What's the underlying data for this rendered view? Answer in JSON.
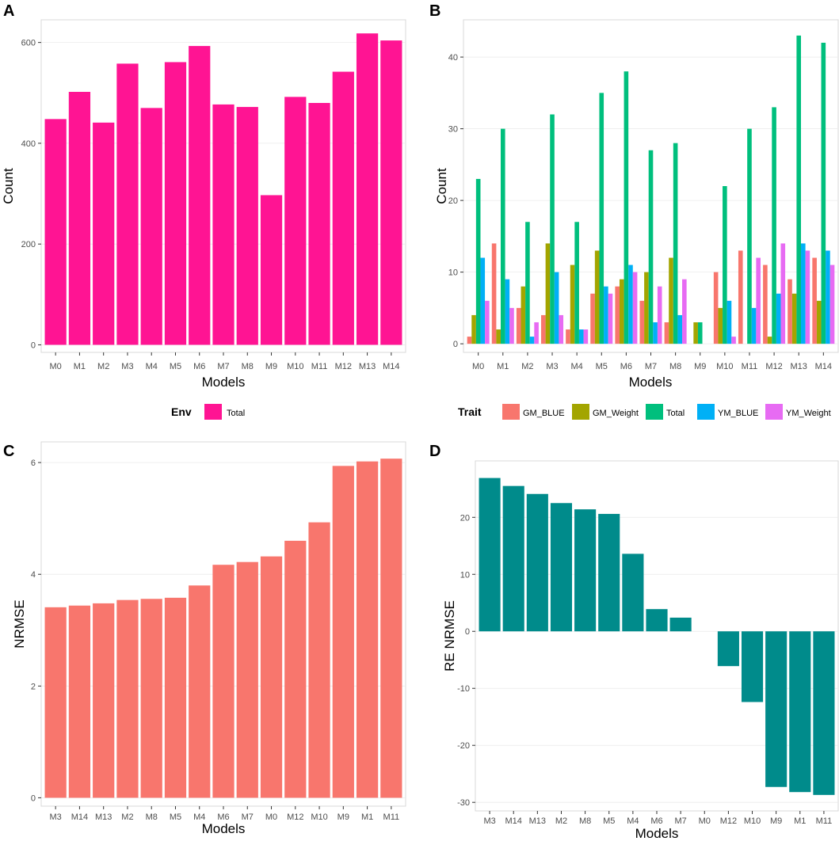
{
  "chart_data": [
    {
      "panel": "A",
      "type": "bar",
      "categories": [
        "M0",
        "M1",
        "M2",
        "M3",
        "M4",
        "M5",
        "M6",
        "M7",
        "M8",
        "M9",
        "M10",
        "M11",
        "M12",
        "M13",
        "M14"
      ],
      "series": [
        {
          "name": "Total",
          "color": "#FF1493",
          "values": [
            448,
            502,
            441,
            558,
            470,
            561,
            593,
            477,
            472,
            297,
            492,
            480,
            542,
            618,
            604
          ]
        }
      ],
      "xlabel": "Models",
      "ylabel": "Count",
      "ylim": [
        -15,
        645
      ],
      "yticks": [
        0,
        200,
        400,
        600
      ],
      "legend": {
        "title": "Env",
        "position": "bottom"
      }
    },
    {
      "panel": "B",
      "type": "bar",
      "categories": [
        "M0",
        "M1",
        "M2",
        "M3",
        "M4",
        "M5",
        "M6",
        "M7",
        "M8",
        "M9",
        "M10",
        "M11",
        "M12",
        "M13",
        "M14"
      ],
      "series": [
        {
          "name": "GM_BLUE",
          "color": "#F8766D",
          "values": [
            1,
            14,
            5,
            4,
            2,
            7,
            8,
            6,
            3,
            0,
            10,
            13,
            11,
            9,
            12
          ]
        },
        {
          "name": "GM_Weight",
          "color": "#A3A500",
          "values": [
            4,
            2,
            8,
            14,
            11,
            13,
            9,
            10,
            12,
            3,
            5,
            0,
            1,
            7,
            6
          ]
        },
        {
          "name": "Total",
          "color": "#00BF7D",
          "values": [
            23,
            30,
            17,
            32,
            17,
            35,
            38,
            27,
            28,
            3,
            22,
            30,
            33,
            43,
            42
          ]
        },
        {
          "name": "YM_BLUE",
          "color": "#00B0F6",
          "values": [
            12,
            9,
            1,
            10,
            2,
            8,
            11,
            3,
            4,
            0,
            6,
            5,
            7,
            14,
            13
          ]
        },
        {
          "name": "YM_Weight",
          "color": "#E76BF3",
          "values": [
            6,
            5,
            3,
            4,
            2,
            7,
            10,
            8,
            9,
            0,
            1,
            12,
            14,
            13,
            11
          ]
        }
      ],
      "xlabel": "Models",
      "ylabel": "Count",
      "ylim": [
        -1.2,
        45.2
      ],
      "yticks": [
        0,
        10,
        20,
        30,
        40
      ],
      "legend": {
        "title": "Trait",
        "position": "bottom"
      }
    },
    {
      "panel": "C",
      "type": "bar",
      "categories": [
        "M3",
        "M14",
        "M13",
        "M2",
        "M8",
        "M5",
        "M4",
        "M6",
        "M7",
        "M0",
        "M12",
        "M10",
        "M9",
        "M1",
        "M11"
      ],
      "series": [
        {
          "name": "NRMSE",
          "color": "#F8766D",
          "values": [
            3.41,
            3.44,
            3.48,
            3.54,
            3.56,
            3.58,
            3.8,
            4.17,
            4.22,
            4.32,
            4.6,
            4.93,
            5.94,
            6.02,
            6.07
          ]
        }
      ],
      "xlabel": "Models",
      "ylabel": "NRMSE",
      "ylim": [
        -0.15,
        6.37
      ],
      "yticks": [
        0,
        2,
        4,
        6
      ]
    },
    {
      "panel": "D",
      "type": "bar",
      "categories": [
        "M3",
        "M14",
        "M13",
        "M2",
        "M8",
        "M5",
        "M4",
        "M6",
        "M7",
        "M0",
        "M12",
        "M10",
        "M9",
        "M1",
        "M11"
      ],
      "series": [
        {
          "name": "RE NRMSE",
          "color": "#008B8B",
          "values": [
            26.9,
            25.5,
            24.1,
            22.5,
            21.4,
            20.6,
            13.6,
            3.9,
            2.4,
            0,
            -6.1,
            -12.4,
            -27.3,
            -28.2,
            -28.7
          ]
        }
      ],
      "xlabel": "Models",
      "ylabel": "RE NRMSE",
      "ylim": [
        -31.5,
        29.9
      ],
      "yticks": [
        -30,
        -20,
        -10,
        0,
        10,
        20
      ]
    }
  ]
}
